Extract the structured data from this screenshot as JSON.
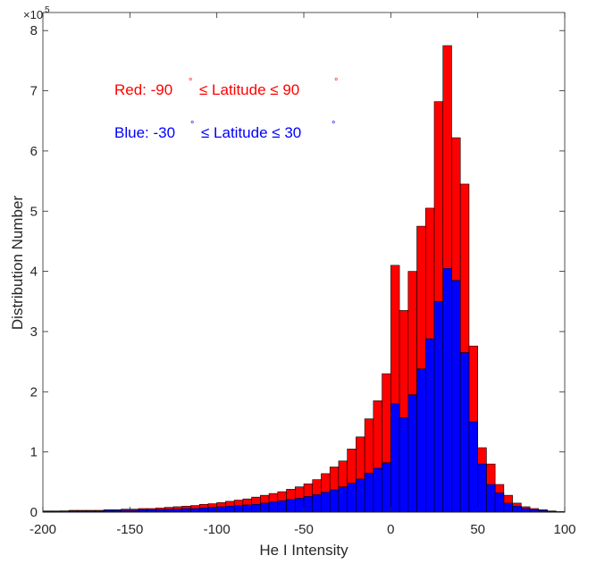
{
  "chart_data": {
    "type": "bar",
    "xlabel": "He I Intensity",
    "ylabel": "Distribution Number",
    "y_exponent_base": "×10",
    "y_exponent_power": "5",
    "xlim": [
      -200,
      100
    ],
    "ylim": [
      0,
      8.3
    ],
    "y_scale_factor": 100000,
    "x_ticks": [
      -200,
      -150,
      -100,
      -50,
      0,
      50,
      100
    ],
    "x_tick_labels": [
      "-200",
      "-150",
      "-100",
      "-50",
      "0",
      "50",
      "100"
    ],
    "y_ticks": [
      0,
      1,
      2,
      3,
      4,
      5,
      6,
      7,
      8
    ],
    "y_tick_labels": [
      "0",
      "1",
      "2",
      "3",
      "4",
      "5",
      "6",
      "7",
      "8"
    ],
    "grid": false,
    "bar_width": 5,
    "x": [
      -197.5,
      -192.5,
      -187.5,
      -182.5,
      -177.5,
      -172.5,
      -167.5,
      -162.5,
      -157.5,
      -152.5,
      -147.5,
      -142.5,
      -137.5,
      -132.5,
      -127.5,
      -122.5,
      -117.5,
      -112.5,
      -107.5,
      -102.5,
      -97.5,
      -92.5,
      -87.5,
      -82.5,
      -77.5,
      -72.5,
      -67.5,
      -62.5,
      -57.5,
      -52.5,
      -47.5,
      -42.5,
      -37.5,
      -32.5,
      -27.5,
      -22.5,
      -17.5,
      -12.5,
      -7.5,
      -2.5,
      2.5,
      7.5,
      12.5,
      17.5,
      22.5,
      27.5,
      32.5,
      37.5,
      42.5,
      47.5,
      52.5,
      57.5,
      62.5,
      67.5,
      72.5,
      77.5,
      82.5,
      87.5,
      92.5,
      97.5
    ],
    "series": [
      {
        "name": "Red",
        "color": "#ff0000",
        "values": [
          0.02,
          0.02,
          0.02,
          0.03,
          0.03,
          0.03,
          0.03,
          0.04,
          0.04,
          0.05,
          0.05,
          0.06,
          0.06,
          0.07,
          0.08,
          0.09,
          0.1,
          0.11,
          0.13,
          0.14,
          0.16,
          0.18,
          0.2,
          0.22,
          0.25,
          0.28,
          0.31,
          0.34,
          0.38,
          0.42,
          0.47,
          0.54,
          0.64,
          0.75,
          0.85,
          1.05,
          1.25,
          1.55,
          1.85,
          2.3,
          4.1,
          3.35,
          4.0,
          4.75,
          5.05,
          6.82,
          7.75,
          6.22,
          5.45,
          2.76,
          1.07,
          0.8,
          0.46,
          0.28,
          0.15,
          0.09,
          0.06,
          0.04,
          0.02,
          0.01
        ]
      },
      {
        "name": "Blue",
        "color": "#0000ff",
        "values": [
          0.01,
          0.01,
          0.02,
          0.02,
          0.02,
          0.02,
          0.02,
          0.03,
          0.03,
          0.03,
          0.03,
          0.04,
          0.04,
          0.04,
          0.05,
          0.05,
          0.06,
          0.06,
          0.07,
          0.08,
          0.09,
          0.1,
          0.11,
          0.12,
          0.13,
          0.15,
          0.17,
          0.19,
          0.21,
          0.23,
          0.26,
          0.29,
          0.33,
          0.37,
          0.42,
          0.48,
          0.55,
          0.65,
          0.73,
          0.82,
          1.8,
          1.57,
          1.95,
          2.38,
          2.88,
          3.5,
          4.05,
          3.85,
          2.65,
          1.5,
          0.8,
          0.46,
          0.32,
          0.15,
          0.1,
          0.06,
          0.04,
          0.03,
          0.01,
          0.01
        ]
      }
    ],
    "annotations": {
      "red_prefix": "Red:  -90",
      "red_mid": "≤ Latitude ≤ 90",
      "blue_prefix": "Blue: -30",
      "blue_mid": "≤ Latitude ≤ 30",
      "degree": "°",
      "red_color": "#ff0000",
      "blue_color": "#0000ff"
    }
  }
}
